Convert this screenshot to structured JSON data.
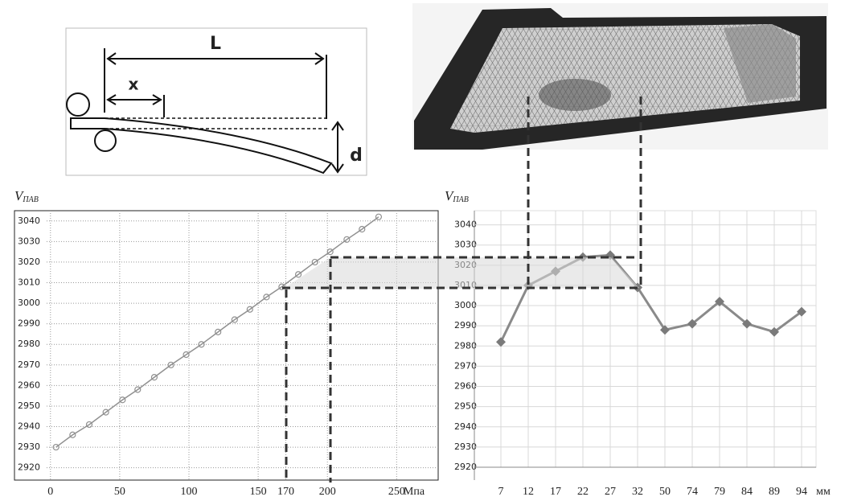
{
  "diagram": {
    "labels": [
      "L",
      "x",
      "d"
    ]
  },
  "chart_data": [
    {
      "type": "line",
      "ylabel": "V",
      "ylabel_sub": "ПАВ",
      "xunit": "Мпа",
      "color": "#909090",
      "grid": true,
      "x": [
        4,
        16,
        28,
        40,
        52,
        63,
        75,
        87,
        98,
        109,
        121,
        133,
        144,
        156,
        167,
        179,
        191,
        202,
        214,
        225,
        237
      ],
      "values": [
        2930,
        2936,
        2941,
        2947,
        2953,
        2958,
        2964,
        2970,
        2975,
        2980,
        2986,
        2992,
        2997,
        3003,
        3008,
        3014,
        3020,
        3025,
        3031,
        3036,
        3042
      ],
      "xlim": [
        -26,
        280
      ],
      "ylim": [
        2914,
        3045
      ],
      "xticks": [
        0,
        50,
        100,
        150,
        170,
        200,
        250
      ],
      "yticks": [
        2920,
        2930,
        2940,
        2950,
        2960,
        2970,
        2980,
        2990,
        3000,
        3010,
        3020,
        3030,
        3040
      ]
    },
    {
      "type": "line",
      "ylabel": "V",
      "ylabel_sub": "ПАВ",
      "xunit": "мм",
      "color": "#8a8a8a",
      "grid": true,
      "categories": [
        7,
        12,
        17,
        22,
        27,
        32,
        50,
        74,
        79,
        84,
        89,
        94
      ],
      "values": [
        2982,
        3010,
        3017,
        3024,
        3025,
        3009,
        2988,
        2991,
        3002,
        2991,
        2987,
        2997
      ],
      "ylim": [
        2920,
        3047
      ],
      "yticks": [
        2920,
        2930,
        2940,
        2950,
        2960,
        2970,
        2980,
        2990,
        3000,
        3010,
        3020,
        3030,
        3040
      ]
    }
  ]
}
